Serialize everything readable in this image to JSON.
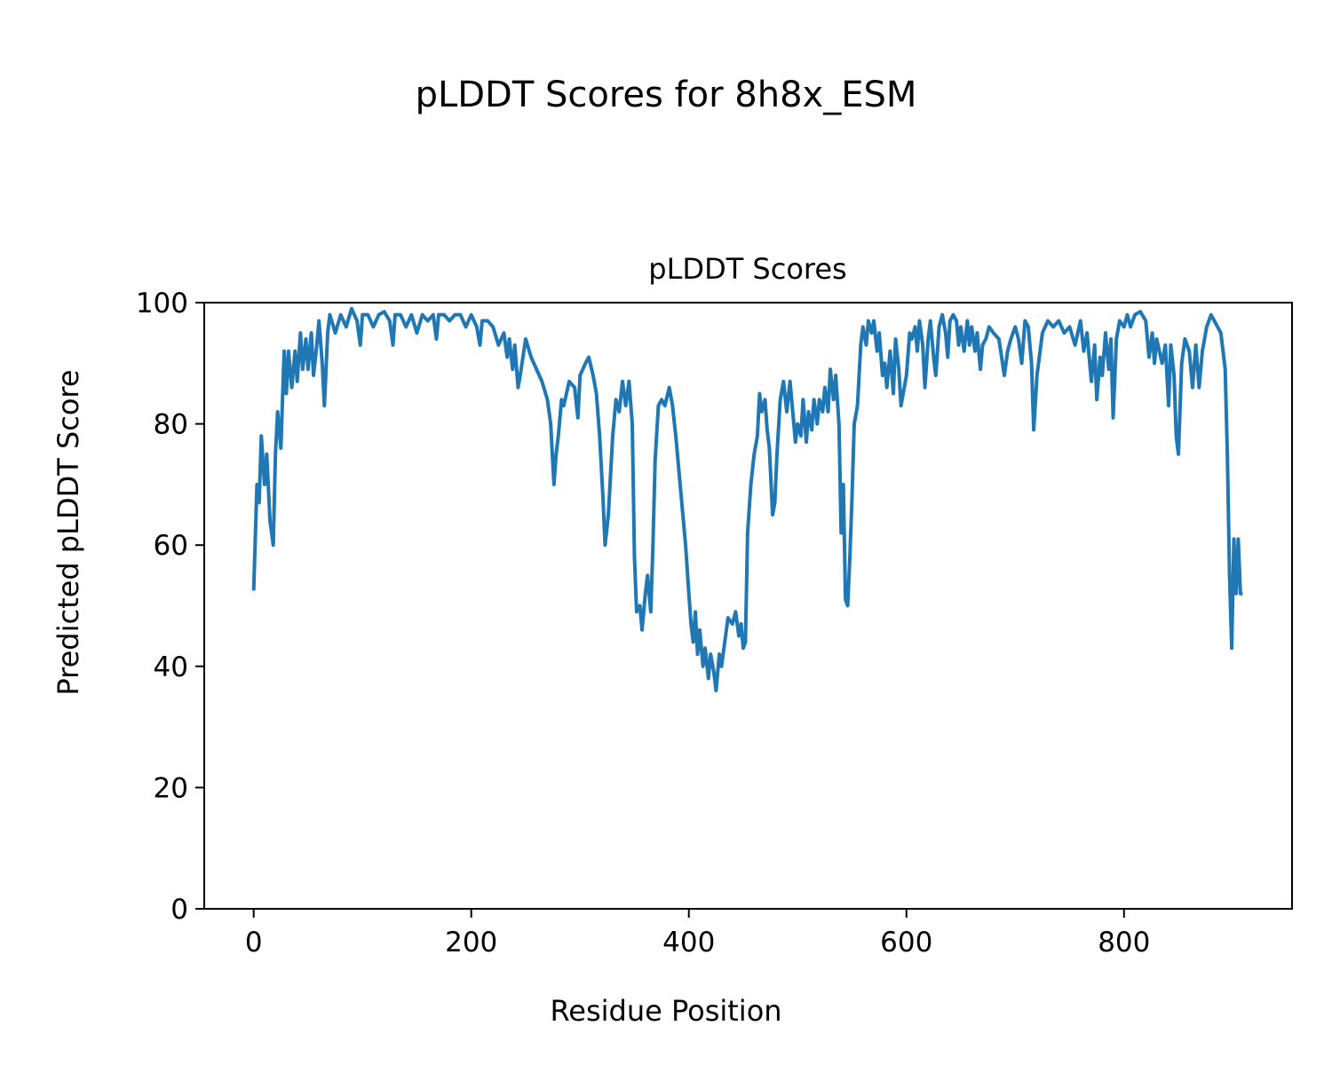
{
  "chart_data": {
    "type": "line",
    "suptitle": "pLDDT Scores for 8h8x_ESM",
    "title": "pLDDT Scores",
    "xlabel": "Residue Position",
    "ylabel": "Predicted pLDDT Score",
    "xlim": [
      -45.45,
      954.45
    ],
    "ylim": [
      0,
      100
    ],
    "xticks": [
      0,
      200,
      400,
      600,
      800
    ],
    "yticks": [
      0,
      20,
      40,
      60,
      80,
      100
    ],
    "grid": false,
    "series": [
      {
        "color": "#1f77b4",
        "x": [
          0,
          3,
          5,
          7,
          10,
          12,
          15,
          18,
          20,
          22,
          25,
          28,
          30,
          32,
          35,
          38,
          40,
          43,
          45,
          48,
          50,
          53,
          55,
          58,
          60,
          63,
          65,
          68,
          70,
          75,
          80,
          85,
          90,
          95,
          98,
          100,
          105,
          110,
          115,
          120,
          125,
          128,
          130,
          135,
          140,
          145,
          150,
          155,
          160,
          165,
          168,
          170,
          175,
          180,
          185,
          190,
          195,
          200,
          205,
          208,
          210,
          215,
          220,
          225,
          230,
          233,
          235,
          238,
          240,
          243,
          245,
          250,
          255,
          260,
          265,
          270,
          273,
          276,
          278,
          280,
          283,
          285,
          290,
          295,
          298,
          300,
          305,
          308,
          312,
          315,
          318,
          321,
          323,
          326,
          330,
          333,
          336,
          339,
          342,
          345,
          348,
          350,
          352,
          355,
          357,
          360,
          362,
          365,
          367,
          369,
          372,
          375,
          378,
          382,
          385,
          388,
          391,
          394,
          397,
          400,
          402,
          404,
          406,
          408,
          410,
          413,
          415,
          418,
          420,
          423,
          425,
          428,
          430,
          433,
          436,
          440,
          443,
          446,
          448,
          450,
          452,
          454,
          457,
          460,
          463,
          465,
          467,
          470,
          472,
          474,
          477,
          479,
          481,
          484,
          487,
          490,
          493,
          496,
          498,
          500,
          503,
          505,
          508,
          510,
          513,
          515,
          518,
          520,
          523,
          525,
          528,
          530,
          533,
          535,
          538,
          540,
          542,
          544,
          546,
          548,
          550,
          552,
          555,
          558,
          560,
          563,
          565,
          568,
          570,
          573,
          575,
          578,
          580,
          582,
          585,
          588,
          590,
          593,
          595,
          598,
          600,
          603,
          605,
          608,
          610,
          612,
          615,
          617,
          620,
          622,
          625,
          627,
          630,
          633,
          636,
          638,
          640,
          643,
          646,
          648,
          650,
          653,
          656,
          658,
          660,
          663,
          665,
          668,
          670,
          673,
          676,
          680,
          685,
          690,
          693,
          696,
          700,
          703,
          706,
          709,
          712,
          715,
          717,
          720,
          725,
          730,
          735,
          740,
          745,
          750,
          755,
          760,
          763,
          766,
          770,
          773,
          775,
          778,
          780,
          783,
          786,
          788,
          790,
          793,
          796,
          800,
          803,
          806,
          810,
          815,
          820,
          823,
          826,
          828,
          830,
          835,
          838,
          841,
          843,
          846,
          848,
          850,
          853,
          856,
          860,
          863,
          866,
          869,
          872,
          876,
          880,
          883,
          886,
          889,
          891,
          893,
          895,
          897,
          899,
          901,
          903,
          905,
          907,
          909
        ],
        "values": [
          52.5,
          70,
          67,
          78,
          70,
          75,
          64,
          60,
          75,
          82,
          76,
          92,
          85,
          92,
          86,
          92,
          87,
          95,
          89,
          94,
          89,
          95,
          88,
          93,
          97,
          90,
          83,
          95,
          98,
          95,
          98,
          96,
          99,
          97,
          93,
          98,
          98,
          96,
          98,
          98.5,
          97,
          93,
          98,
          98,
          96,
          98,
          95,
          98,
          97,
          98,
          94,
          98,
          98,
          97,
          98,
          98,
          96,
          98,
          96,
          93,
          97,
          97,
          96,
          93,
          95,
          91,
          94,
          89,
          93,
          86,
          88,
          94,
          91,
          89,
          87,
          84,
          80,
          70,
          75,
          78,
          84,
          83,
          87,
          86,
          81,
          88,
          90,
          91,
          88,
          85,
          78,
          68,
          60,
          65,
          78,
          84,
          82,
          87,
          83,
          87,
          80,
          58,
          49,
          50,
          46,
          52,
          55,
          49,
          60,
          74,
          83,
          84,
          83,
          86,
          83,
          78,
          72,
          66,
          60,
          52,
          47,
          44,
          49,
          42,
          46,
          40,
          43,
          38,
          42,
          39,
          36,
          42,
          40,
          44,
          48,
          47,
          49,
          45,
          47,
          43,
          44,
          62,
          70,
          75,
          78,
          85,
          82,
          84,
          79,
          76,
          65,
          67,
          75,
          84,
          87,
          82,
          87,
          81,
          77,
          80,
          78,
          84,
          77,
          82,
          79,
          84,
          80,
          84,
          82,
          86,
          82,
          89,
          84,
          88,
          80,
          62,
          70,
          51,
          50,
          58,
          68,
          80,
          83,
          93,
          96,
          93,
          97,
          95,
          97,
          92,
          95,
          88,
          90,
          86,
          92,
          85,
          94,
          89,
          83,
          86,
          88,
          95,
          94,
          96,
          92,
          97,
          93,
          86,
          94,
          97,
          91,
          88,
          96,
          98,
          95,
          91,
          97,
          98,
          97,
          93,
          96,
          92,
          97,
          93,
          96,
          92,
          95,
          89,
          93,
          94,
          96,
          95,
          94,
          88,
          92,
          94,
          96,
          94,
          90,
          97,
          96,
          90,
          79,
          88,
          95,
          97,
          96,
          97,
          95,
          96,
          93,
          97,
          92,
          95,
          87,
          93,
          84,
          91,
          88,
          95,
          89,
          94,
          81,
          94,
          97,
          96,
          98,
          96,
          98,
          98.5,
          97,
          91,
          95,
          90,
          94,
          90,
          93,
          83,
          93,
          88,
          78,
          75,
          90,
          94,
          92,
          86,
          93,
          86,
          92,
          96,
          98,
          97,
          96,
          95,
          92,
          89,
          75,
          55,
          43,
          61,
          52,
          61,
          52,
          52
        ]
      }
    ]
  }
}
